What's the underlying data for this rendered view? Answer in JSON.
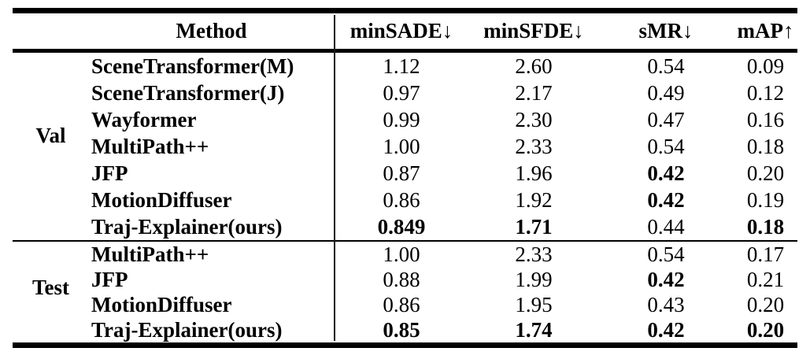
{
  "table": {
    "header": {
      "group": "",
      "method": "Method",
      "metrics": [
        {
          "label": "minSADE ",
          "arrow": "↓"
        },
        {
          "label": "minSFDE",
          "arrow": "↓"
        },
        {
          "label": "sMR",
          "arrow": "↓"
        },
        {
          "label": "mAP",
          "arrow": "↑"
        }
      ]
    },
    "sections": [
      {
        "group": "Val",
        "rows": [
          {
            "method": "SceneTransformer(M)",
            "values": [
              "1.12",
              "2.60",
              "0.54",
              "0.09"
            ],
            "bold": [
              false,
              false,
              false,
              false
            ]
          },
          {
            "method": "SceneTransformer(J)",
            "values": [
              "0.97",
              "2.17",
              "0.49",
              "0.12"
            ],
            "bold": [
              false,
              false,
              false,
              false
            ]
          },
          {
            "method": "Wayformer",
            "values": [
              "0.99",
              "2.30",
              "0.47",
              "0.16"
            ],
            "bold": [
              false,
              false,
              false,
              false
            ]
          },
          {
            "method": "MultiPath++",
            "values": [
              "1.00",
              "2.33",
              "0.54",
              "0.18"
            ],
            "bold": [
              false,
              false,
              false,
              false
            ]
          },
          {
            "method": "JFP",
            "values": [
              "0.87",
              "1.96",
              "0.42",
              "0.20"
            ],
            "bold": [
              false,
              false,
              true,
              false
            ]
          },
          {
            "method": "MotionDiffuser",
            "values": [
              "0.86",
              "1.92",
              "0.42",
              "0.19"
            ],
            "bold": [
              false,
              false,
              true,
              false
            ]
          },
          {
            "method": "Traj-Explainer(ours)",
            "values": [
              "0.849",
              "1.71",
              "0.44",
              "0.18"
            ],
            "bold": [
              true,
              true,
              false,
              true
            ]
          }
        ]
      },
      {
        "group": "Test",
        "rows": [
          {
            "method": "MultiPath++",
            "values": [
              "1.00",
              "2.33",
              "0.54",
              "0.17"
            ],
            "bold": [
              false,
              false,
              false,
              false
            ]
          },
          {
            "method": "JFP",
            "values": [
              "0.88",
              "1.99",
              "0.42",
              "0.21"
            ],
            "bold": [
              false,
              false,
              true,
              false
            ]
          },
          {
            "method": "MotionDiffuser",
            "values": [
              "0.86",
              "1.95",
              "0.43",
              "0.20"
            ],
            "bold": [
              false,
              false,
              false,
              false
            ]
          },
          {
            "method": "Traj-Explainer(ours)",
            "values": [
              "0.85",
              "1.74",
              "0.42",
              "0.20"
            ],
            "bold": [
              true,
              true,
              true,
              true
            ]
          }
        ]
      }
    ]
  }
}
